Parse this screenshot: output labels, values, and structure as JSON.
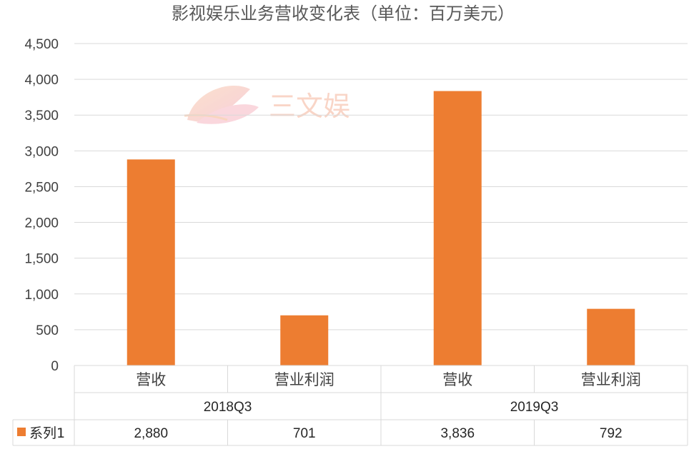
{
  "chart_data": {
    "type": "bar",
    "title": "影视娱乐业务营收变化表（单位：百万美元）",
    "xlabel": "",
    "ylabel": "",
    "ylim": [
      0,
      4500
    ],
    "yticks": [
      0,
      500,
      1000,
      1500,
      2000,
      2500,
      3000,
      3500,
      4000,
      4500
    ],
    "ytick_labels": [
      "0",
      "500",
      "1,000",
      "1,500",
      "2,000",
      "2,500",
      "3,000",
      "3,500",
      "4,000",
      "4,500"
    ],
    "grid": true,
    "groups": [
      {
        "label": "2018Q3",
        "categories": [
          "营收",
          "营业利润"
        ]
      },
      {
        "label": "2019Q3",
        "categories": [
          "营收",
          "营业利润"
        ]
      }
    ],
    "series": [
      {
        "name": "系列1",
        "color": "#ED7D31",
        "values": [
          2880,
          701,
          3836,
          792
        ],
        "value_labels": [
          "2,880",
          "701",
          "3,836",
          "792"
        ]
      }
    ],
    "legend_position": "data-table-left"
  },
  "watermark": {
    "text": "三文娱"
  }
}
